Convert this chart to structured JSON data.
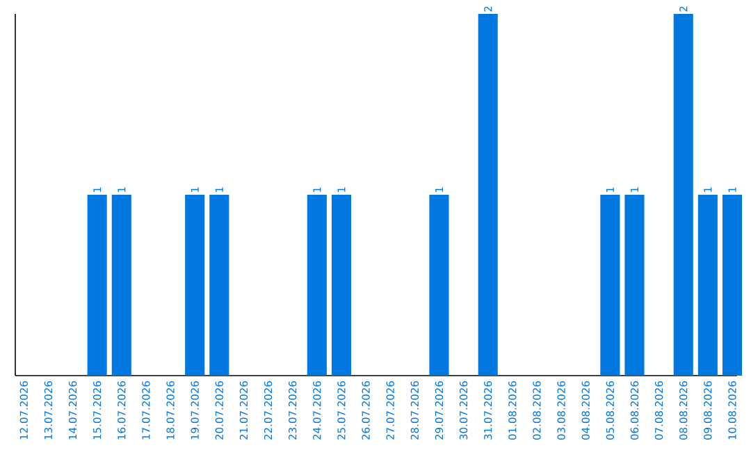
{
  "chart_data": {
    "type": "bar",
    "categories": [
      "12.07.2026",
      "13.07.2026",
      "14.07.2026",
      "15.07.2026",
      "16.07.2026",
      "17.07.2026",
      "18.07.2026",
      "19.07.2026",
      "20.07.2026",
      "21.07.2026",
      "22.07.2026",
      "23.07.2026",
      "24.07.2026",
      "25.07.2026",
      "26.07.2026",
      "27.07.2026",
      "28.07.2026",
      "29.07.2026",
      "30.07.2026",
      "31.07.2026",
      "01.08.2026",
      "02.08.2026",
      "03.08.2026",
      "04.08.2026",
      "05.08.2026",
      "06.08.2026",
      "07.08.2026",
      "08.08.2026",
      "09.08.2026",
      "10.08.2026"
    ],
    "values": [
      0,
      0,
      0,
      1,
      1,
      0,
      0,
      1,
      1,
      0,
      0,
      0,
      1,
      1,
      0,
      0,
      0,
      1,
      0,
      2,
      0,
      0,
      0,
      0,
      1,
      1,
      0,
      2,
      1,
      1
    ],
    "value_labels": [
      null,
      null,
      null,
      "1",
      "1",
      null,
      null,
      "1",
      "1",
      null,
      null,
      null,
      "1",
      "1",
      null,
      null,
      null,
      "1",
      null,
      "2",
      null,
      null,
      null,
      null,
      "1",
      "1",
      null,
      "2",
      "1",
      "1"
    ],
    "color": "#0078e0",
    "tick_labels": "x"
  }
}
